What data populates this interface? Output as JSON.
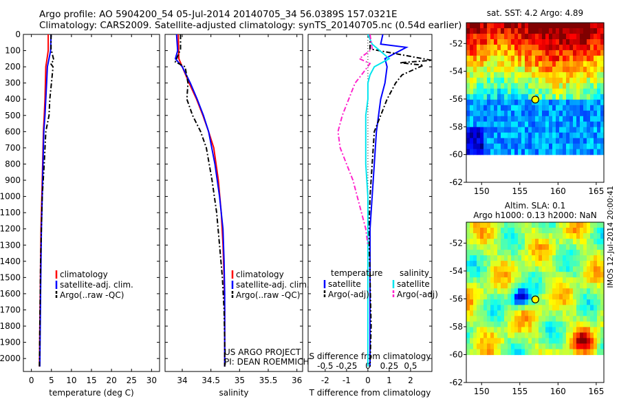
{
  "header": {
    "line1": "Argo profile: AO 5904200_54 05-Jul-2014 20140705_34 56.0389S 157.0321E",
    "line2": "Climatology: CARS2009. Satellite-adjusted climatology: synTS_20140705.nc (0.54d earlier)"
  },
  "side_stamp": "IMOS 12-Jul-2014 20:00:41",
  "project": {
    "line1": "US ARGO PROJECT",
    "line2": "PI: DEAN ROEMMICH"
  },
  "colors": {
    "climatology": "#ff0000",
    "satellite": "#0000ff",
    "argo": "#000000",
    "s_sat": "#00e5ee",
    "s_argo": "#ff22cc"
  },
  "chart_data": [
    {
      "type": "line",
      "id": "temperature",
      "xlabel": "temperature (deg C)",
      "ylabel": "",
      "xlim": [
        -2,
        32
      ],
      "ylim": [
        0,
        2080
      ],
      "xticks": [
        0,
        5,
        10,
        15,
        20,
        25,
        30
      ],
      "yticks": [
        0,
        100,
        200,
        300,
        400,
        500,
        600,
        700,
        800,
        900,
        1000,
        1100,
        1200,
        1300,
        1400,
        1500,
        1600,
        1700,
        1800,
        1900,
        2000
      ],
      "legend": [
        "climatology",
        "satellite-adj. clim.",
        "Argo(..raw -QC)"
      ],
      "series": [
        {
          "name": "climatology",
          "style": "solid",
          "color": "#ff0000",
          "x": [
            4.2,
            4.2,
            3.9,
            3.6,
            3.5,
            3.4,
            3.2,
            3.0,
            2.8,
            2.6,
            2.4,
            2.3,
            2.2,
            2.1,
            2.0
          ],
          "y": [
            0,
            100,
            150,
            200,
            300,
            400,
            500,
            600,
            800,
            1000,
            1200,
            1400,
            1600,
            1800,
            2050
          ]
        },
        {
          "name": "satellite-adj. clim.",
          "style": "solid",
          "color": "#0000ff",
          "x": [
            4.9,
            4.8,
            4.4,
            4.0,
            3.8,
            3.6,
            3.4,
            3.1,
            2.9,
            2.7,
            2.5,
            2.4,
            2.3,
            2.2,
            2.1
          ],
          "y": [
            0,
            100,
            150,
            200,
            300,
            400,
            500,
            600,
            800,
            1000,
            1200,
            1400,
            1600,
            1800,
            2050
          ]
        },
        {
          "name": "Argo(..raw -QC)",
          "style": "dash",
          "color": "#000000",
          "x": [
            4.9,
            4.9,
            5.6,
            4.8,
            5.4,
            5.0,
            4.6,
            4.4,
            3.6,
            3.2,
            2.7,
            2.5,
            2.3,
            2.2,
            2.1,
            2.0
          ],
          "y": [
            0,
            90,
            160,
            180,
            200,
            300,
            400,
            500,
            600,
            800,
            1000,
            1200,
            1400,
            1600,
            1800,
            2050
          ]
        }
      ]
    },
    {
      "type": "line",
      "id": "salinity",
      "xlabel": "salinity",
      "ylabel": "",
      "xlim": [
        33.7,
        36.1
      ],
      "ylim": [
        0,
        2080
      ],
      "xticks": [
        34,
        34.5,
        35,
        35.5,
        36
      ],
      "legend": [
        "climatology",
        "satellite-adj. clim.",
        "Argo(..raw -QC)"
      ],
      "series": [
        {
          "name": "climatology",
          "style": "solid",
          "color": "#ff0000",
          "x": [
            33.93,
            33.94,
            34.0,
            34.12,
            34.25,
            34.36,
            34.46,
            34.55,
            34.63,
            34.68,
            34.71,
            34.73,
            34.74,
            34.74,
            34.74
          ],
          "y": [
            0,
            150,
            200,
            300,
            400,
            500,
            600,
            700,
            900,
            1100,
            1300,
            1500,
            1700,
            1900,
            2050
          ]
        },
        {
          "name": "satellite-adj. clim.",
          "style": "solid",
          "color": "#0000ff",
          "x": [
            33.9,
            33.92,
            33.88,
            34.0,
            34.14,
            34.26,
            34.37,
            34.46,
            34.57,
            34.65,
            34.71,
            34.73,
            34.74,
            34.74,
            34.74
          ],
          "y": [
            0,
            100,
            150,
            200,
            300,
            400,
            500,
            600,
            800,
            1000,
            1200,
            1400,
            1600,
            1800,
            2050
          ]
        },
        {
          "name": "Argo(..raw -QC)",
          "style": "dash",
          "color": "#000000",
          "x": [
            33.97,
            33.97,
            33.88,
            34.05,
            34.1,
            34.08,
            34.18,
            34.32,
            34.42,
            34.52,
            34.6,
            34.65,
            34.7,
            34.73,
            34.74,
            34.74
          ],
          "y": [
            0,
            90,
            170,
            200,
            300,
            400,
            500,
            600,
            700,
            900,
            1100,
            1300,
            1500,
            1700,
            1900,
            2050
          ]
        }
      ]
    },
    {
      "type": "line",
      "id": "difference",
      "xlabel": "T difference from climatology",
      "xlabel2": "S difference from climatology",
      "xlim": [
        -2.8,
        3.0
      ],
      "ylim": [
        0,
        2080
      ],
      "xticks": [
        -2,
        -1,
        0,
        1,
        2
      ],
      "xticks2": [
        -0.5,
        -0.25,
        0,
        0.25,
        0.5
      ],
      "legend_t": {
        "title": "temperature",
        "items": [
          "satellite",
          "Argo(-adj)"
        ]
      },
      "legend_s": {
        "title": "salinity",
        "items": [
          "satellite",
          "Argo(-adj)"
        ]
      },
      "series": [
        {
          "name": "satellite",
          "group": "temperature",
          "style": "solid",
          "color": "#0000ff",
          "x": [
            0.7,
            0.6,
            1.8,
            0.8,
            0.9,
            0.8,
            0.6,
            0.5,
            0.4,
            0.3,
            0.2,
            0.1,
            0.1,
            0.1,
            0.1
          ],
          "y": [
            0,
            60,
            80,
            150,
            200,
            300,
            400,
            500,
            600,
            800,
            1000,
            1200,
            1400,
            1600,
            2050
          ]
        },
        {
          "name": "Argo(-adj)",
          "group": "temperature",
          "style": "dash",
          "color": "#000000",
          "x": [
            0.1,
            0.1,
            3.0,
            1.5,
            2.6,
            1.6,
            1.3,
            0.9,
            0.6,
            0.3,
            0.2,
            0.1,
            0.05,
            0.1,
            0.15,
            0.1
          ],
          "y": [
            0,
            90,
            160,
            175,
            190,
            250,
            300,
            400,
            500,
            600,
            800,
            1000,
            1200,
            1500,
            1800,
            2050
          ]
        },
        {
          "name": "satellite",
          "group": "salinity",
          "style": "solid",
          "color": "#00e5ee",
          "x": [
            0.0,
            0.2,
            1.0,
            0.3,
            0.1,
            0.0,
            0.0,
            -0.1,
            -0.1,
            -0.1,
            0.0,
            0.0,
            0.0,
            0.0,
            0.0
          ],
          "y": [
            0,
            60,
            150,
            200,
            250,
            300,
            400,
            500,
            600,
            800,
            1000,
            1200,
            1400,
            1600,
            2050
          ]
        },
        {
          "name": "Argo(-adj)",
          "group": "salinity",
          "style": "dash",
          "color": "#ff22cc",
          "x": [
            0.1,
            0.2,
            -0.4,
            0.1,
            -0.3,
            -0.6,
            -0.9,
            -1.2,
            -1.4,
            -1.3,
            -1.0,
            -0.7,
            -0.5,
            -0.3,
            -0.1,
            0.0
          ],
          "y": [
            0,
            90,
            150,
            180,
            250,
            300,
            400,
            500,
            600,
            700,
            800,
            900,
            1000,
            1100,
            1200,
            1300
          ]
        }
      ]
    },
    {
      "type": "heatmap",
      "id": "sst_map",
      "title": "sat. SST: 4.2  Argo: 4.89",
      "xlim": [
        148,
        166
      ],
      "ylim": [
        -62,
        -50.5
      ],
      "xticks": [
        150,
        155,
        160,
        165
      ],
      "yticks": [
        -52,
        -54,
        -56,
        -58,
        -60,
        -62
      ],
      "marker": {
        "lon": 157.03,
        "lat": -56.04
      }
    },
    {
      "type": "heatmap",
      "id": "sla_map",
      "title": "Altim. SLA: 0.1",
      "subtitle": "Argo h1000: 0.13 h2000: NaN",
      "xlim": [
        148,
        166
      ],
      "ylim": [
        -62,
        -50.5
      ],
      "xticks": [
        150,
        155,
        160,
        165
      ],
      "yticks": [
        -52,
        -54,
        -56,
        -58,
        -60,
        -62
      ],
      "marker": {
        "lon": 157.03,
        "lat": -56.04
      }
    }
  ]
}
